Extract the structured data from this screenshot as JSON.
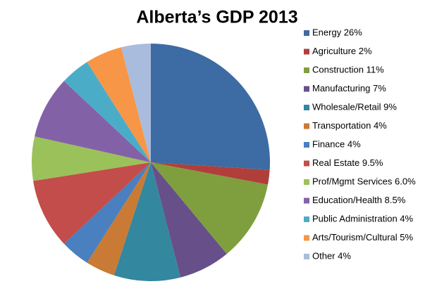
{
  "chart_data": {
    "type": "pie",
    "title": "Alberta’s GDP 2013",
    "categories": [
      "Energy 26%",
      "Agriculture 2%",
      "Construction 11%",
      "Manufacturing 7%",
      "Wholesale/Retail 9%",
      "Transportation 4%",
      "Finance 4%",
      "Real Estate 9.5%",
      "Prof/Mgmt Services 6.0%",
      "Education/Health 8.5%",
      "Public Administration 4%",
      "Arts/Tourism/Cultural 5%",
      "Other 4%"
    ],
    "values": [
      26,
      2,
      11,
      7,
      9,
      4,
      4,
      9.5,
      6.0,
      8.5,
      4,
      5,
      4
    ],
    "colors": [
      "#3d6ba3",
      "#b03f3c",
      "#7f9f3e",
      "#674f8a",
      "#33879f",
      "#c97a35",
      "#4a7fc0",
      "#c24d4a",
      "#9bc15a",
      "#8361a7",
      "#4bacc8",
      "#f79646",
      "#a9bcdd"
    ]
  }
}
